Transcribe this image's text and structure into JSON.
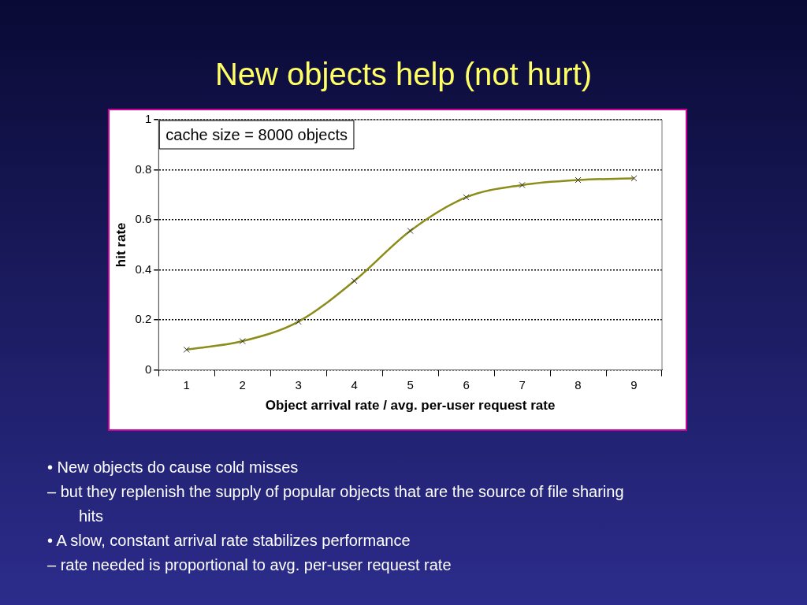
{
  "chart_data": {
    "type": "line",
    "title": "New objects help (not hurt)",
    "xlabel": "Object arrival rate / avg. per-user request rate",
    "ylabel": "hit rate",
    "categories": [
      "1",
      "2",
      "3",
      "4",
      "5",
      "6",
      "7",
      "8",
      "9"
    ],
    "series": [
      {
        "color": "#8c8c1a",
        "values": [
          0.081,
          0.115,
          0.193,
          0.356,
          0.556,
          0.69,
          0.739,
          0.759,
          0.766
        ]
      }
    ],
    "ylim": [
      0,
      1
    ],
    "yticks": [
      0,
      0.2,
      0.4,
      0.6,
      0.8,
      1
    ],
    "grid": "y",
    "marker": "cross",
    "line_style": "solid",
    "legend": false,
    "annotations": [
      "cache size = 8000 objects",
      "• New objects do cause cold misses",
      "– but they replenish the supply of popular objects that are the source of file sharing hits",
      "• A slow, constant arrival rate stabilizes performance",
      "– rate needed is proportional to avg. per-user request rate"
    ]
  }
}
